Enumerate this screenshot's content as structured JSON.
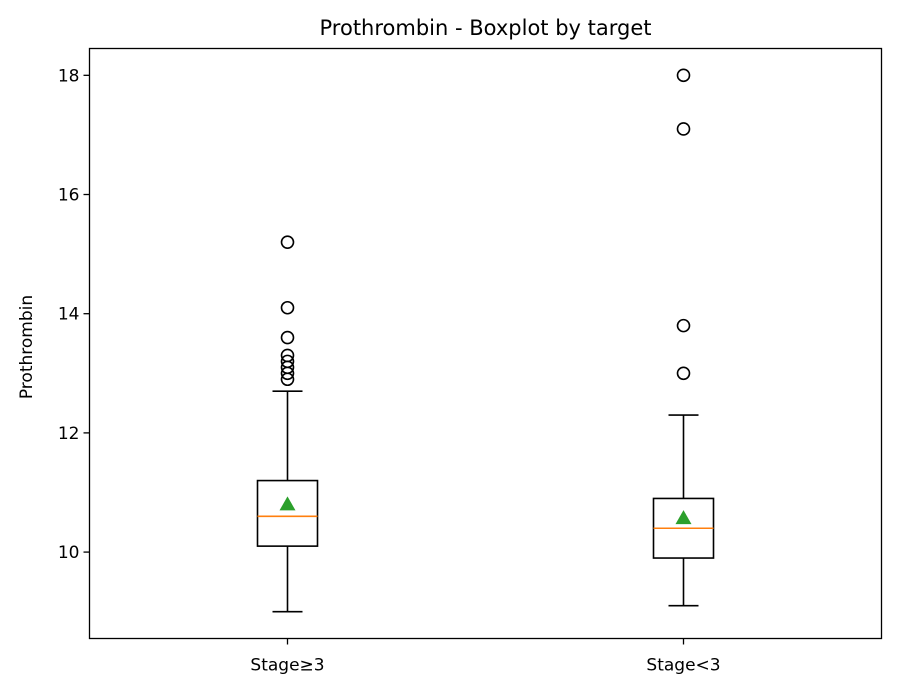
{
  "chart_data": {
    "type": "boxplot",
    "title": "Prothrombin - Boxplot by target",
    "xlabel": "",
    "ylabel": "Prothrombin",
    "ylim": [
      8.55,
      18.45
    ],
    "yticks": [
      10,
      12,
      14,
      16,
      18
    ],
    "categories": [
      "Stage≥3",
      "Stage<3"
    ],
    "boxes": [
      {
        "category": "Stage≥3",
        "whisker_low": 9.0,
        "q1": 10.1,
        "median": 10.6,
        "q3": 11.2,
        "whisker_high": 12.7,
        "mean": 10.8,
        "outliers": [
          12.9,
          13.0,
          13.1,
          13.2,
          13.3,
          13.6,
          14.1,
          15.2
        ]
      },
      {
        "category": "Stage<3",
        "whisker_low": 9.1,
        "q1": 9.9,
        "median": 10.4,
        "q3": 10.9,
        "whisker_high": 12.3,
        "mean": 10.57,
        "outliers": [
          13.0,
          13.8,
          17.1,
          18.0
        ]
      }
    ],
    "grid": false,
    "colors": {
      "box": "#000000",
      "median": "#ff7f0e",
      "mean_marker": "#2ca02c",
      "outlier_edge": "#000000"
    }
  }
}
